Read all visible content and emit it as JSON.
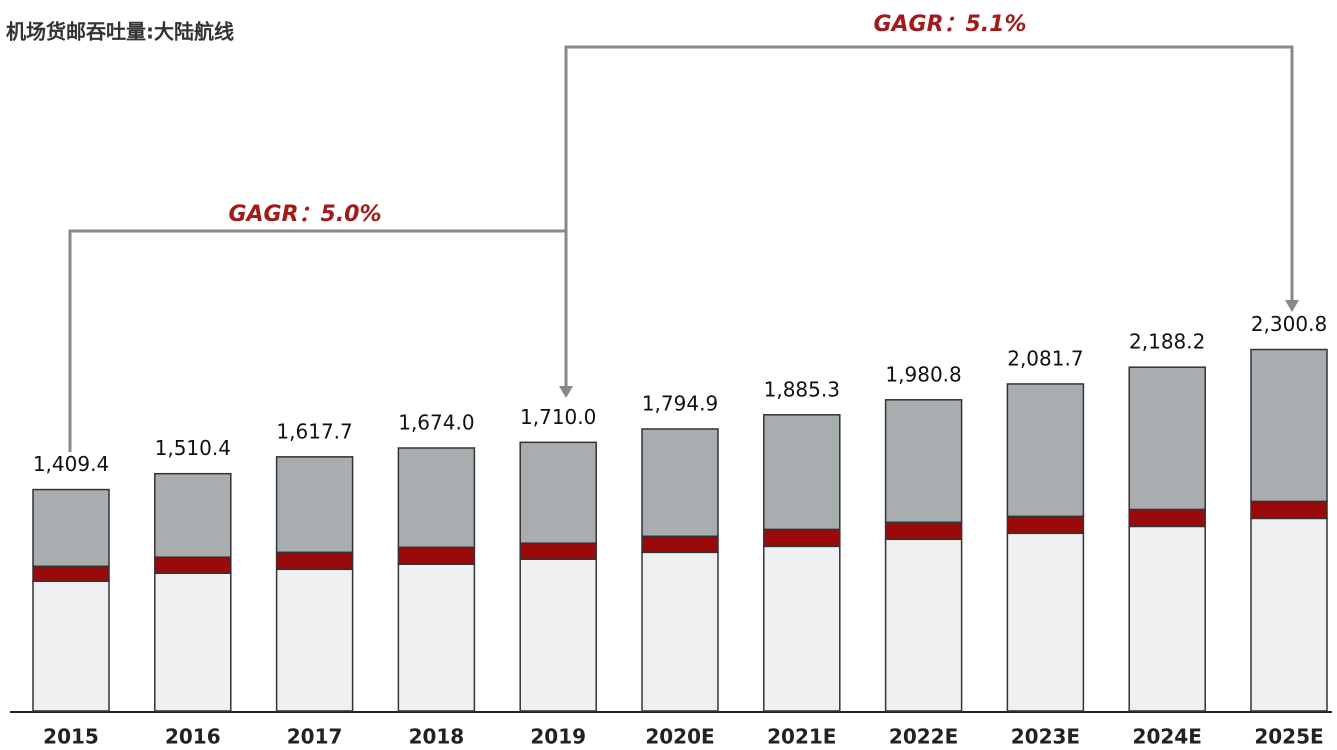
{
  "chart_data": {
    "type": "stacked_bar",
    "categories": [
      "2015",
      "2016",
      "2017",
      "2018",
      "2019",
      "2020E",
      "2021E",
      "2022E",
      "2023E",
      "2024E",
      "2025E"
    ],
    "series": [
      {
        "name": "机场货邮吞吐量:大陆航线",
        "color": "#eff0f2",
        "values": [
          826,
          877,
          902,
          934,
          966,
          1010,
          1048,
          1093,
          1131,
          1175,
          1226
        ]
      },
      {
        "color": "#9b0a0a",
        "values": [
          95,
          102,
          108,
          108,
          102,
          102,
          108,
          108,
          108,
          108,
          108
        ]
      },
      {
        "color": "#a8adb0",
        "values": [
          488.4,
          531.4,
          607.7,
          632,
          642,
          682.9,
          729.3,
          779.8,
          842.7,
          905.2,
          966.8
        ]
      }
    ],
    "totals": [
      1409.4,
      1510.4,
      1617.7,
      1674.0,
      1710.0,
      1794.9,
      1885.3,
      1980.8,
      2081.7,
      2188.2,
      2300.8
    ],
    "total_labels": [
      "1,409.4",
      "1,510.4",
      "1,617.7",
      "1,674.0",
      "1,710.0",
      "1,794.9",
      "1,885.3",
      "1,980.8",
      "2,081.7",
      "2,188.2",
      "2,300.8"
    ],
    "annotations": [
      "GAGR：5.0%",
      "GAGR：5.1%"
    ],
    "ylim": [
      0,
      4500
    ]
  }
}
